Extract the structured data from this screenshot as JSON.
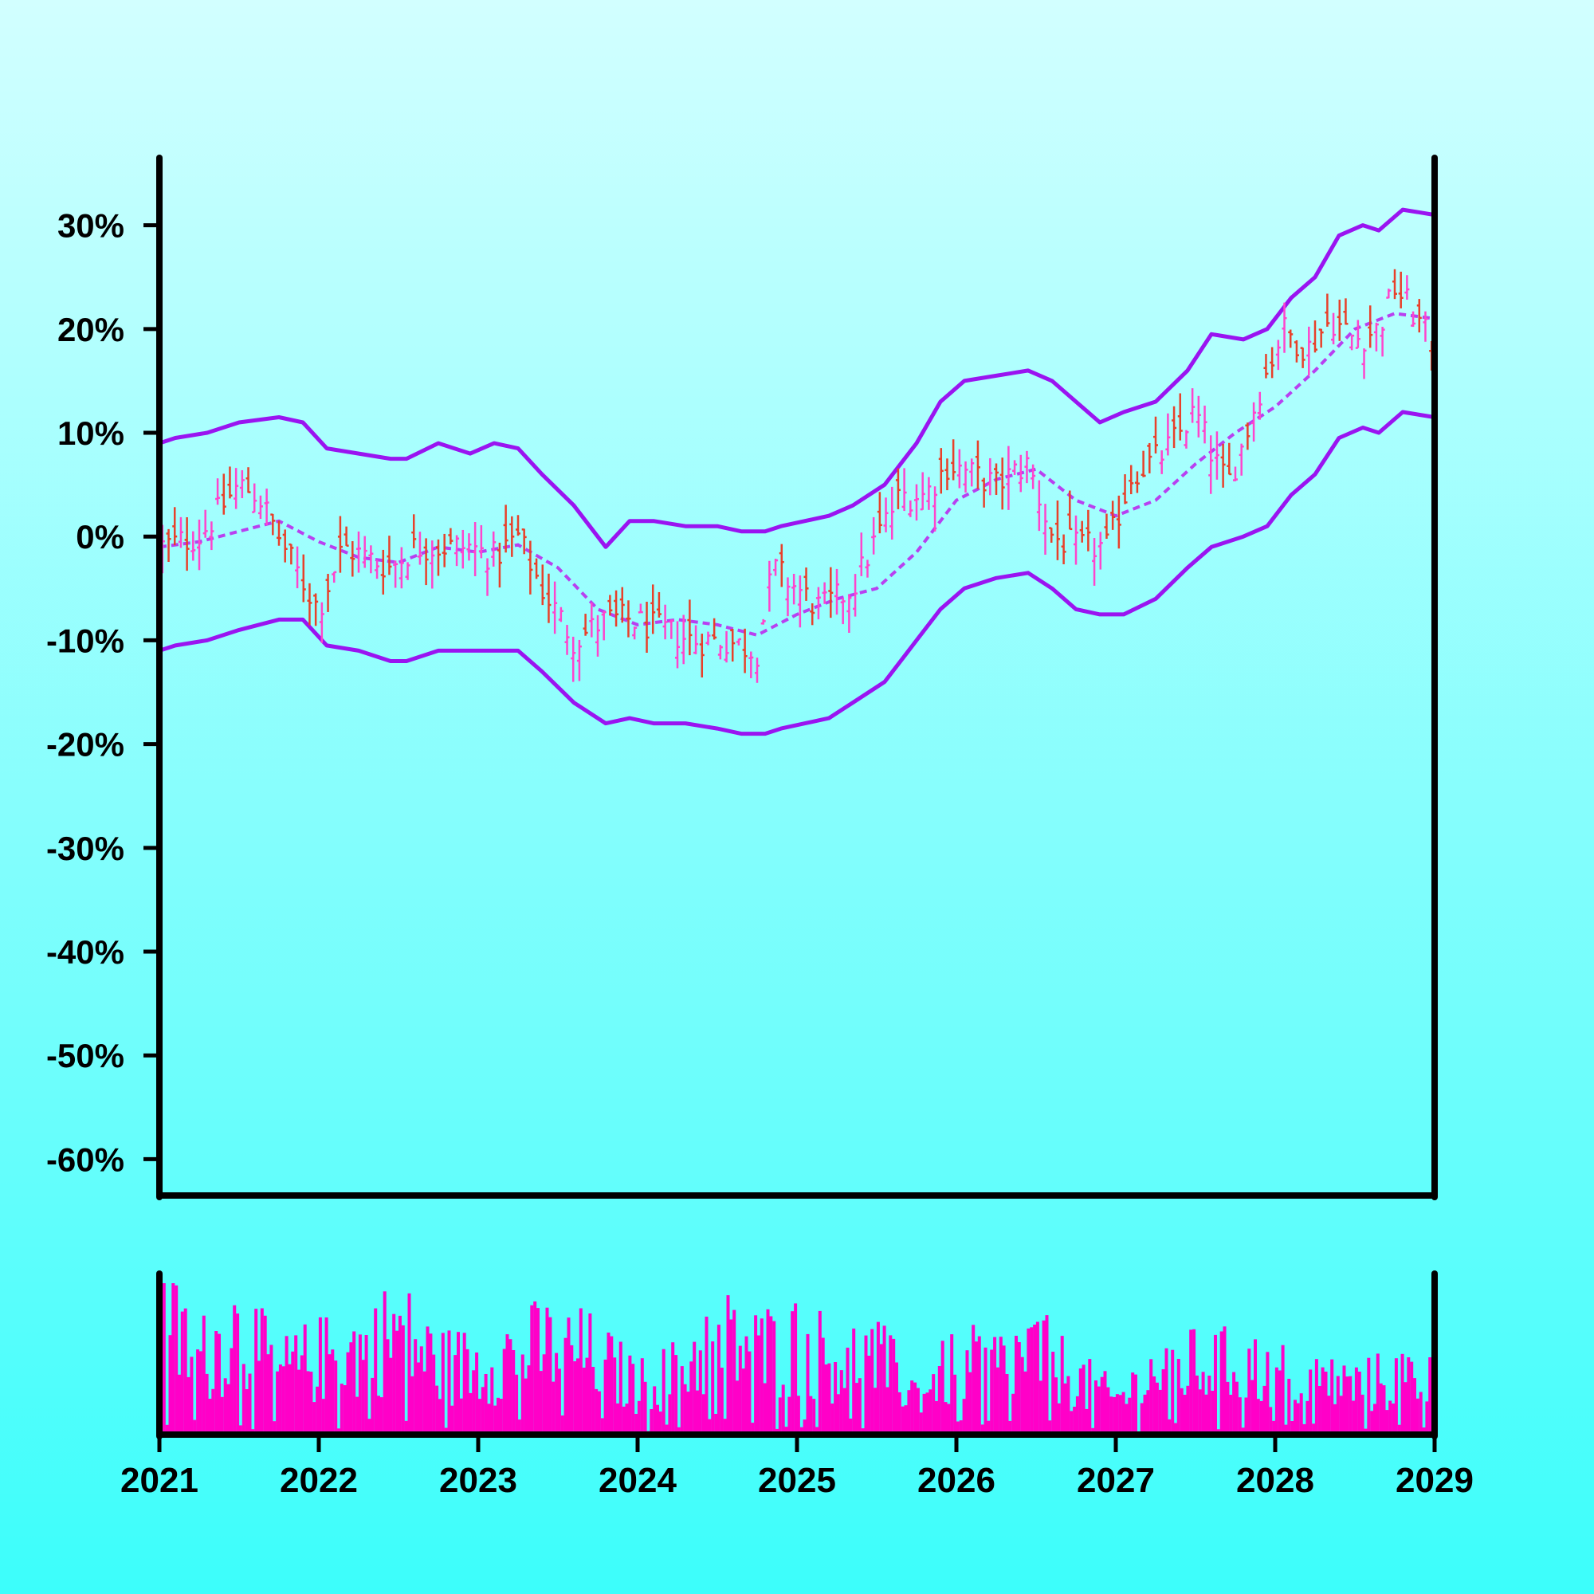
{
  "chart_data": {
    "type": "ohlc",
    "title": "",
    "xlabel": "",
    "ylabel": "",
    "x_ticks": [
      "2021",
      "2022",
      "2023",
      "2024",
      "2025",
      "2026",
      "2027",
      "2028",
      "2029"
    ],
    "x_range": [
      2021,
      2029
    ],
    "y_ticks": [
      "30%",
      "20%",
      "10%",
      "0%",
      "-10%",
      "-20%",
      "-30%",
      "-40%",
      "-50%",
      "-60%"
    ],
    "y_range": [
      -63.5,
      36.5
    ],
    "grid": false,
    "legend": "none",
    "bar_interval_weeks": 2,
    "close_series": {
      "t": [
        2021.0,
        2021.25,
        2021.5,
        2021.62,
        2021.75,
        2021.85,
        2022.0,
        2022.15,
        2022.3,
        2022.45,
        2022.6,
        2022.8,
        2022.95,
        2023.1,
        2023.25,
        2023.4,
        2023.6,
        2023.8,
        2023.95,
        2024.15,
        2024.35,
        2024.55,
        2024.75,
        2024.85,
        2025.0,
        2025.15,
        2025.35,
        2025.5,
        2025.65,
        2025.8,
        2025.95,
        2026.1,
        2026.25,
        2026.45,
        2026.6,
        2026.75,
        2026.95,
        2027.1,
        2027.3,
        2027.5,
        2027.6,
        2027.7,
        2027.8,
        2027.9,
        2028.05,
        2028.2,
        2028.35,
        2028.5,
        2028.65,
        2028.75,
        2028.85,
        2029.0
      ],
      "value": [
        -1,
        0,
        5,
        4,
        0,
        -3,
        -7,
        -1,
        -2,
        -3,
        -1,
        -1,
        -1,
        -2,
        0,
        -5,
        -10,
        -8,
        -8,
        -9,
        -10,
        -10,
        -11,
        -3,
        -5,
        -7,
        -5,
        0,
        4,
        4,
        7,
        6,
        5,
        7,
        0,
        -1,
        -1,
        6,
        8,
        12,
        8,
        5,
        9,
        14,
        20,
        18,
        21,
        19,
        20,
        24,
        22,
        18
      ]
    },
    "moving_average": {
      "style": "dashed",
      "t": [
        2021.0,
        2021.25,
        2021.5,
        2021.75,
        2022.0,
        2022.25,
        2022.5,
        2022.75,
        2023.0,
        2023.25,
        2023.5,
        2023.75,
        2024.0,
        2024.25,
        2024.5,
        2024.75,
        2025.0,
        2025.25,
        2025.5,
        2025.75,
        2026.0,
        2026.25,
        2026.5,
        2026.75,
        2027.0,
        2027.25,
        2027.5,
        2027.75,
        2028.0,
        2028.25,
        2028.5,
        2028.75,
        2029.0
      ],
      "value": [
        -1,
        -0.5,
        0.5,
        1.5,
        -0.5,
        -2,
        -2.5,
        -1,
        -1.5,
        -0.8,
        -3,
        -7,
        -8.5,
        -8,
        -8.5,
        -9.5,
        -7.5,
        -6,
        -5,
        -1.5,
        3.5,
        5.5,
        6.5,
        3.5,
        2,
        3.5,
        7,
        10,
        12.5,
        16,
        20,
        21.5,
        21
      ]
    },
    "upper_band": {
      "t": [
        2021.0,
        2021.1,
        2021.3,
        2021.5,
        2021.75,
        2021.9,
        2022.05,
        2022.25,
        2022.45,
        2022.55,
        2022.75,
        2022.95,
        2023.1,
        2023.25,
        2023.4,
        2023.6,
        2023.8,
        2023.95,
        2024.1,
        2024.3,
        2024.5,
        2024.65,
        2024.8,
        2024.9,
        2025.05,
        2025.2,
        2025.35,
        2025.55,
        2025.75,
        2025.9,
        2026.05,
        2026.25,
        2026.45,
        2026.6,
        2026.75,
        2026.9,
        2027.05,
        2027.25,
        2027.45,
        2027.6,
        2027.8,
        2027.95,
        2028.1,
        2028.25,
        2028.4,
        2028.55,
        2028.65,
        2028.8,
        2029.0
      ],
      "value": [
        9,
        9.5,
        10,
        11,
        11.5,
        11,
        8.5,
        8,
        7.5,
        7.5,
        9,
        8,
        9,
        8.5,
        6,
        3,
        -1,
        1.5,
        1.5,
        1,
        1,
        0.5,
        0.5,
        1,
        1.5,
        2,
        3,
        5,
        9,
        13,
        15,
        15.5,
        16,
        15,
        13,
        11,
        12,
        13,
        16,
        19.5,
        19,
        20,
        23,
        25,
        29,
        30,
        29.5,
        31.5,
        31
      ]
    },
    "lower_band": {
      "t": [
        2021.0,
        2021.1,
        2021.3,
        2021.5,
        2021.75,
        2021.9,
        2022.05,
        2022.25,
        2022.45,
        2022.55,
        2022.75,
        2022.95,
        2023.1,
        2023.25,
        2023.4,
        2023.6,
        2023.8,
        2023.95,
        2024.1,
        2024.3,
        2024.5,
        2024.65,
        2024.8,
        2024.9,
        2025.05,
        2025.2,
        2025.35,
        2025.55,
        2025.75,
        2025.9,
        2026.05,
        2026.25,
        2026.45,
        2026.6,
        2026.75,
        2026.9,
        2027.05,
        2027.25,
        2027.45,
        2027.6,
        2027.8,
        2027.95,
        2028.1,
        2028.25,
        2028.4,
        2028.55,
        2028.65,
        2028.8,
        2029.0
      ],
      "value": [
        -11,
        -10.5,
        -10,
        -9,
        -8,
        -8,
        -10.5,
        -11,
        -12,
        -12,
        -11,
        -11,
        -11,
        -11,
        -13,
        -16,
        -18,
        -17.5,
        -18,
        -18,
        -18.5,
        -19,
        -19,
        -18.5,
        -18,
        -17.5,
        -16,
        -14,
        -10,
        -7,
        -5,
        -4,
        -3.5,
        -5,
        -7,
        -7.5,
        -7.5,
        -6,
        -3,
        -1,
        0,
        1,
        4,
        6,
        9.5,
        10.5,
        10,
        12,
        11.5
      ]
    },
    "volume": {
      "t": [
        2021.0,
        2021.25,
        2021.5,
        2021.75,
        2022.0,
        2022.25,
        2022.5,
        2022.75,
        2023.0,
        2023.25,
        2023.5,
        2023.75,
        2024.0,
        2024.25,
        2024.5,
        2024.75,
        2025.0,
        2025.25,
        2025.5,
        2025.75,
        2026.0,
        2026.25,
        2026.5,
        2026.75,
        2027.0,
        2027.25,
        2027.5,
        2027.75,
        2028.0,
        2028.25,
        2028.5,
        2028.75,
        2029.0
      ],
      "value": [
        0.85,
        0.55,
        0.75,
        0.45,
        0.55,
        0.6,
        0.75,
        0.5,
        0.5,
        0.6,
        0.65,
        0.55,
        0.35,
        0.45,
        0.7,
        0.6,
        0.65,
        0.55,
        0.55,
        0.3,
        0.5,
        0.5,
        0.6,
        0.4,
        0.25,
        0.45,
        0.5,
        0.5,
        0.45,
        0.4,
        0.35,
        0.4,
        0.45
      ]
    },
    "colors": {
      "up": "#ff44cc",
      "down": "#e8402a",
      "bands": "#9a14f0",
      "moving_average": "#b840f0",
      "volume": "#ff00c8",
      "axes": "#000000"
    }
  }
}
